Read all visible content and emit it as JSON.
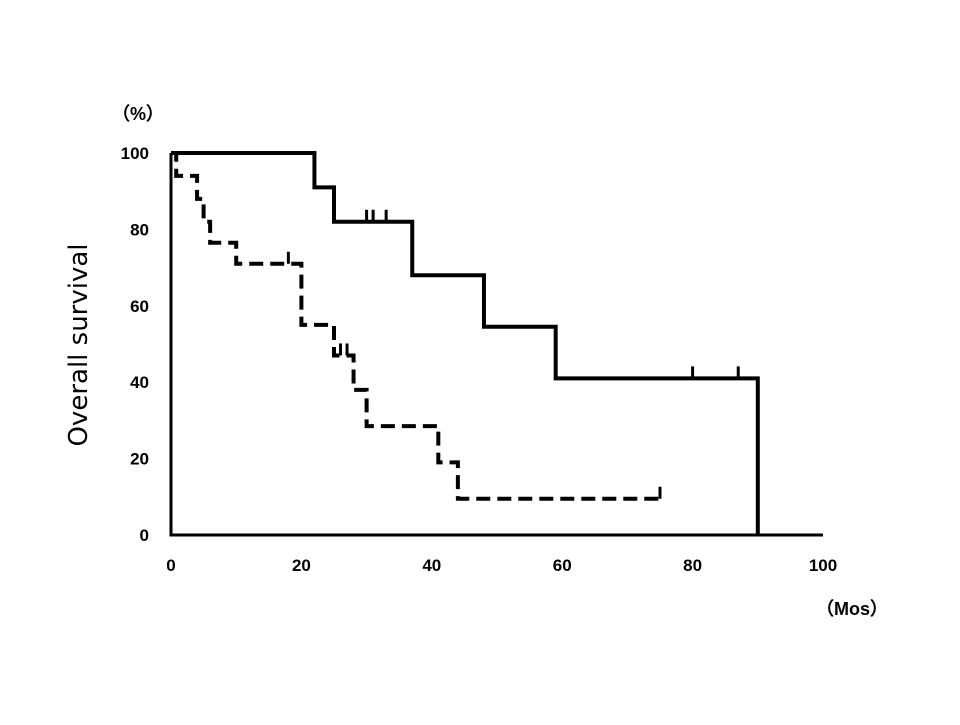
{
  "chart_data": {
    "type": "line",
    "subtype": "kaplan-meier",
    "title": "",
    "ylabel": "Overall survival",
    "y_unit": "（%）",
    "x_unit": "（Mos）",
    "xlim": [
      0,
      100
    ],
    "ylim": [
      0,
      100
    ],
    "x_ticks": [
      0,
      20,
      40,
      60,
      80,
      100
    ],
    "y_ticks": [
      0,
      20,
      40,
      60,
      80,
      100
    ],
    "grid": false,
    "legend": "none",
    "series": [
      {
        "style": "solid",
        "color": "#000000",
        "steps": [
          [
            0,
            100
          ],
          [
            22,
            91
          ],
          [
            25,
            82
          ],
          [
            37,
            68
          ],
          [
            48,
            54.5
          ],
          [
            59,
            41
          ],
          [
            90,
            0
          ]
        ],
        "end_x": 90,
        "censor": [
          [
            30,
            82
          ],
          [
            31,
            82
          ],
          [
            33,
            82
          ],
          [
            80,
            41
          ],
          [
            87,
            41
          ]
        ]
      },
      {
        "style": "dashed",
        "color": "#000000",
        "steps": [
          [
            0,
            100
          ],
          [
            0.8,
            94
          ],
          [
            4,
            88
          ],
          [
            5,
            82
          ],
          [
            6,
            76.5
          ],
          [
            10,
            71
          ],
          [
            20,
            55
          ],
          [
            25,
            47
          ],
          [
            28,
            38
          ],
          [
            30,
            28.5
          ],
          [
            41,
            19
          ],
          [
            44,
            9.5
          ]
        ],
        "end_x": 75,
        "censor": [
          [
            18,
            71
          ],
          [
            26,
            47
          ],
          [
            27,
            47
          ],
          [
            75,
            9.5
          ]
        ]
      }
    ]
  }
}
